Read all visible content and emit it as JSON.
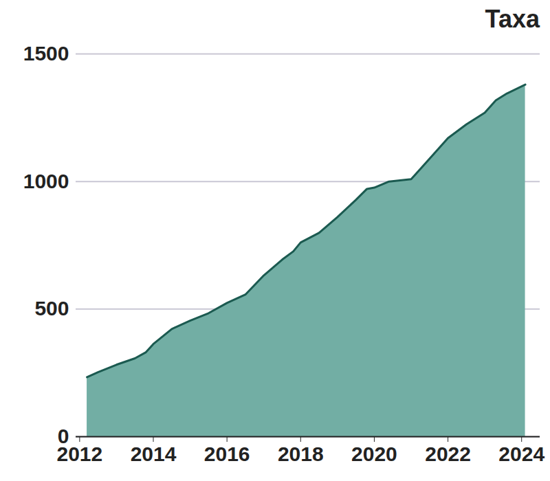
{
  "chart_data": {
    "type": "area",
    "title": "Taxa",
    "x": [
      2012.2,
      2012.5,
      2013.0,
      2013.5,
      2013.8,
      2014.0,
      2014.5,
      2015.0,
      2015.5,
      2016.0,
      2016.5,
      2017.0,
      2017.5,
      2017.8,
      2018.0,
      2018.5,
      2019.0,
      2019.5,
      2019.8,
      2020.0,
      2020.4,
      2021.0,
      2021.5,
      2022.0,
      2022.5,
      2023.0,
      2023.3,
      2023.6,
      2024.1
    ],
    "values": [
      233,
      253,
      282,
      307,
      331,
      363,
      422,
      455,
      484,
      524,
      557,
      632,
      694,
      726,
      761,
      799,
      861,
      928,
      971,
      976,
      1000,
      1009,
      1089,
      1170,
      1224,
      1270,
      1318,
      1345,
      1380
    ],
    "color": "#72aea4",
    "xlim": [
      2011.9,
      2024.5
    ],
    "xticks": [
      2012,
      2014,
      2016,
      2018,
      2020,
      2022,
      2024
    ],
    "ylim": [
      0,
      1500
    ],
    "yticks": [
      0,
      500,
      1000,
      1500
    ],
    "grid": true
  }
}
